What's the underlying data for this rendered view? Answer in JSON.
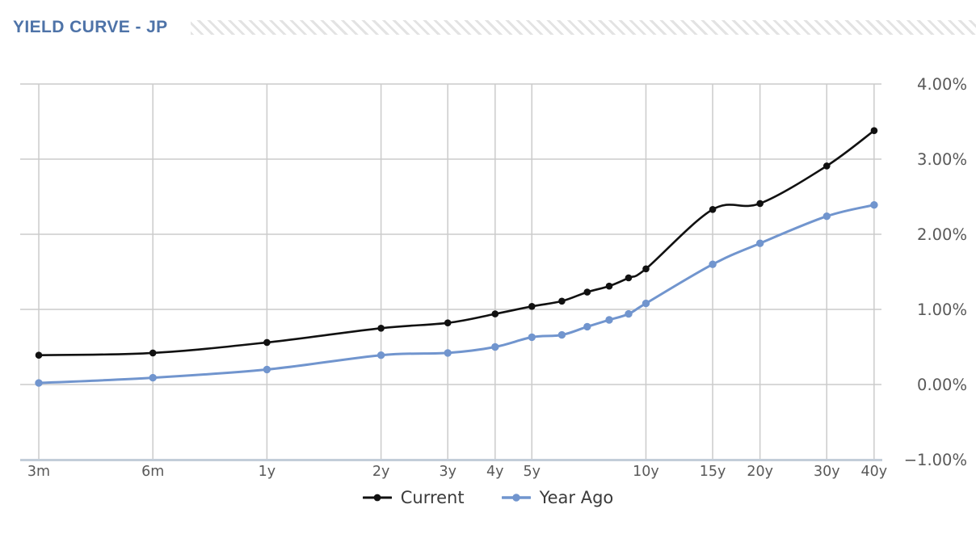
{
  "header": {
    "title": "YIELD CURVE - JP"
  },
  "chart_data": {
    "type": "line",
    "title": "YIELD CURVE - JP",
    "x_scale": "log",
    "categories": [
      "3m",
      "6m",
      "1y",
      "2y",
      "3y",
      "4y",
      "5y",
      "6y",
      "7y",
      "8y",
      "9y",
      "10y",
      "15y",
      "20y",
      "30y",
      "40y"
    ],
    "maturities_years": [
      0.25,
      0.5,
      1,
      2,
      3,
      4,
      5,
      6,
      7,
      8,
      9,
      10,
      15,
      20,
      30,
      40
    ],
    "x_tick_labels": [
      {
        "label": "3m",
        "years": 0.25
      },
      {
        "label": "6m",
        "years": 0.5
      },
      {
        "label": "1y",
        "years": 1
      },
      {
        "label": "2y",
        "years": 2
      },
      {
        "label": "3y",
        "years": 3
      },
      {
        "label": "4y",
        "years": 4
      },
      {
        "label": "5y",
        "years": 5
      },
      {
        "label": "10y",
        "years": 10
      },
      {
        "label": "15y",
        "years": 15
      },
      {
        "label": "20y",
        "years": 20
      },
      {
        "label": "30y",
        "years": 30
      },
      {
        "label": "40y",
        "years": 40
      }
    ],
    "y_ticks": [
      {
        "label": "4.00%",
        "value": 4
      },
      {
        "label": "3.00%",
        "value": 3
      },
      {
        "label": "2.00%",
        "value": 2
      },
      {
        "label": "1.00%",
        "value": 1
      },
      {
        "label": "0.00%",
        "value": 0
      },
      {
        "label": "−1.00%",
        "value": -1
      }
    ],
    "ylim": [
      -1,
      4
    ],
    "grid": true,
    "legend_position": "bottom",
    "xlabel": "",
    "ylabel": "",
    "series": [
      {
        "name": "Current",
        "color": "#111111",
        "values": [
          0.39,
          0.42,
          0.56,
          0.75,
          0.82,
          0.94,
          1.04,
          1.11,
          1.23,
          1.31,
          1.42,
          1.54,
          2.33,
          2.41,
          2.91,
          3.38
        ]
      },
      {
        "name": "Year Ago",
        "color": "#7195ce",
        "values": [
          0.02,
          0.09,
          0.2,
          0.39,
          0.42,
          0.5,
          0.63,
          0.66,
          0.77,
          0.86,
          0.94,
          1.08,
          1.6,
          1.88,
          2.24,
          2.39
        ]
      }
    ]
  },
  "colors": {
    "title": "#4e73a8",
    "axis_labels": "#595959",
    "gridline": "#cbcbcb",
    "axis_line": "#c3cdd9",
    "legend_text": "#3b3b3b",
    "hatch": "#e3e3e3"
  }
}
